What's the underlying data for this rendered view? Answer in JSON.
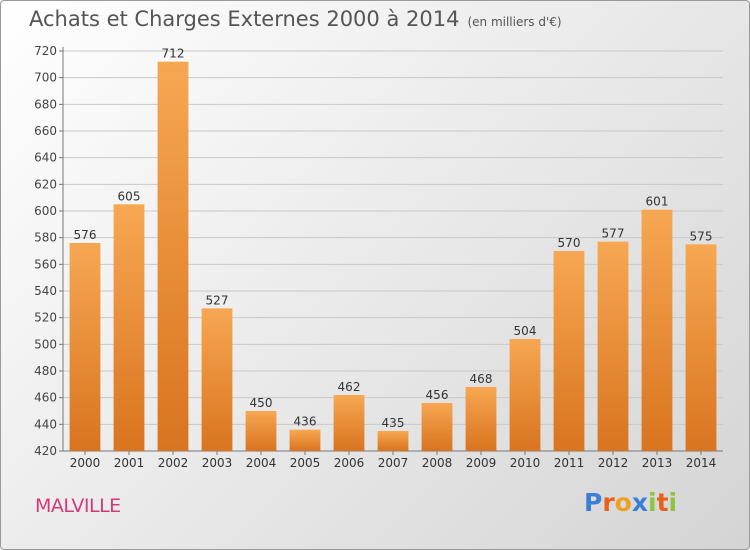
{
  "header": {
    "title": "Achats et Charges Externes 2000 à 2014",
    "unit": "(en milliers d'€)"
  },
  "footer": {
    "city": "MALVILLE",
    "brand": "Proxiti",
    "brand_colors": [
      "#3a7fd5",
      "#e8601c",
      "#f0a020",
      "#3a7fd5",
      "#8cc63f",
      "#e8601c",
      "#8cc63f"
    ]
  },
  "colors": {
    "bar_top": "#f7a752",
    "bar_bottom": "#d9741f",
    "city": "#d23a7a"
  },
  "chart_data": {
    "type": "bar",
    "title": "Achats et Charges Externes 2000 à 2014",
    "subtitle": "(en milliers d'€)",
    "xlabel": "",
    "ylabel": "",
    "categories": [
      "2000",
      "2001",
      "2002",
      "2003",
      "2004",
      "2005",
      "2006",
      "2007",
      "2008",
      "2009",
      "2010",
      "2011",
      "2012",
      "2013",
      "2014"
    ],
    "values": [
      576,
      605,
      712,
      527,
      450,
      436,
      462,
      435,
      456,
      468,
      504,
      570,
      577,
      601,
      575
    ],
    "ylim": [
      420,
      720
    ],
    "yticks": [
      420,
      440,
      460,
      480,
      500,
      520,
      540,
      560,
      580,
      600,
      620,
      640,
      660,
      680,
      700,
      720
    ],
    "grid": true,
    "data_labels": true
  }
}
